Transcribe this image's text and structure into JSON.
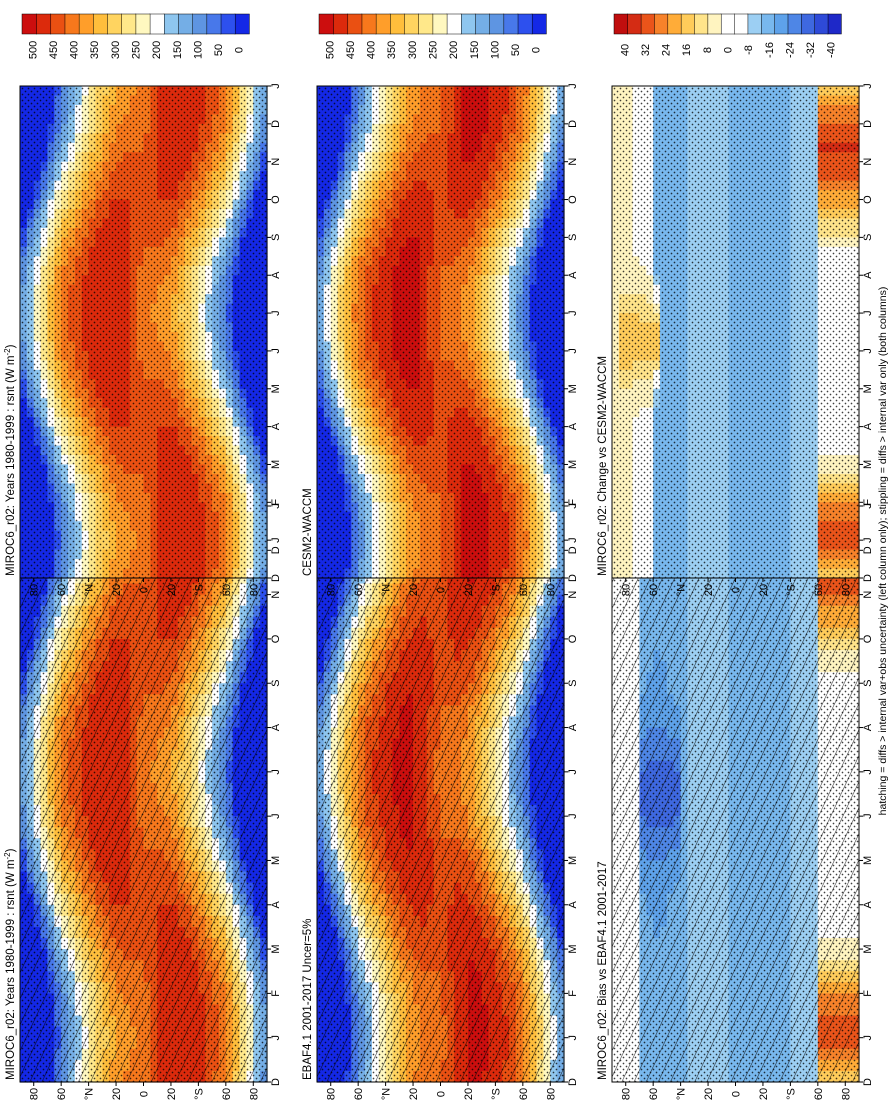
{
  "footer_note": "hatching = diffs > internal var+obs uncertainty (left column only); stippling = diffs > internal var only (both columns)",
  "colors": {
    "abs_scale": [
      "#1428e6",
      "#2d50ee",
      "#4878ea",
      "#5e95e2",
      "#74aee6",
      "#8ec6ef",
      "#ffffff",
      "#fff8c0",
      "#ffe88a",
      "#ffd460",
      "#ffbe3c",
      "#ff9e2a",
      "#f7781c",
      "#ea5012",
      "#dc2a0c",
      "#cc0e0e"
    ],
    "diff_scale": [
      "#1e28c8",
      "#2e4ad8",
      "#3e68e0",
      "#4e86e6",
      "#5ea2ea",
      "#78b8ee",
      "#9ccff3",
      "#ffffff",
      "#ffffff",
      "#fff4c0",
      "#ffe48a",
      "#ffcc5a",
      "#ffac38",
      "#f7822a",
      "#ea541a",
      "#d42c14",
      "#c00e0e"
    ]
  },
  "chart_data": [
    {
      "id": "top-left",
      "type": "heatmap",
      "title": "MIROC6_r02: Years 1980-1999 : rsnt (W m",
      "title_sup": "-2",
      "title_end": ")",
      "months": [
        "D",
        "J",
        "F",
        "M",
        "A",
        "M",
        "J",
        "J",
        "A",
        "S",
        "O",
        "N",
        "D",
        "J"
      ],
      "lat_ticks": [
        "80",
        "60",
        "°N",
        "20",
        "0",
        "20",
        "°S",
        "60",
        "80"
      ],
      "colorbar_labels": [
        "500",
        "450",
        "400",
        "350",
        "300",
        "250",
        "200",
        "150",
        "100",
        "50",
        "0"
      ],
      "scale": "abs",
      "hatching": true,
      "stippling": true,
      "model_offset": 0
    },
    {
      "id": "top-right",
      "type": "heatmap",
      "title": "MIROC6_r02: Years 1980-1999 : rsnt (W m",
      "title_sup": "-2",
      "title_end": ")",
      "months": [
        "D",
        "J",
        "F",
        "M",
        "A",
        "M",
        "J",
        "J",
        "A",
        "S",
        "O",
        "N",
        "D",
        "J"
      ],
      "lat_ticks": [
        "80",
        "60",
        "°N",
        "20",
        "0",
        "20",
        "°S",
        "60",
        "80"
      ],
      "colorbar_labels": [
        "500",
        "450",
        "400",
        "350",
        "300",
        "250",
        "200",
        "150",
        "100",
        "50",
        "0"
      ],
      "scale": "abs",
      "hatching": false,
      "stippling": true,
      "model_offset": 0
    },
    {
      "id": "middle-left",
      "type": "heatmap",
      "title": "EBAF4.1 2001-2017 Uncer=5%",
      "title_sup": "",
      "title_end": "",
      "months": [
        "D",
        "J",
        "F",
        "M",
        "A",
        "M",
        "J",
        "J",
        "A",
        "S",
        "O",
        "N",
        "D",
        "J"
      ],
      "lat_ticks": [
        "80",
        "60",
        "°N",
        "20",
        "0",
        "20",
        "°S",
        "60",
        "80"
      ],
      "colorbar_labels": [
        "500",
        "450",
        "400",
        "350",
        "300",
        "250",
        "200",
        "150",
        "100",
        "50",
        "0"
      ],
      "scale": "abs",
      "hatching": true,
      "stippling": true,
      "model_offset": 8
    },
    {
      "id": "middle-right",
      "type": "heatmap",
      "title": "CESM2-WACCM",
      "title_sup": "",
      "title_end": "",
      "months": [
        "D",
        "J",
        "F",
        "M",
        "A",
        "M",
        "J",
        "J",
        "A",
        "S",
        "O",
        "N",
        "D",
        "J"
      ],
      "lat_ticks": [
        "80",
        "60",
        "°N",
        "20",
        "0",
        "20",
        "°S",
        "60",
        "80"
      ],
      "colorbar_labels": [
        "500",
        "450",
        "400",
        "350",
        "300",
        "250",
        "200",
        "150",
        "100",
        "50",
        "0"
      ],
      "scale": "abs",
      "hatching": false,
      "stippling": true,
      "model_offset": 12
    },
    {
      "id": "bottom-left",
      "type": "heatmap",
      "title": "MIROC6_r02: Bias vs EBAF4.1 2001-2017",
      "title_sup": "",
      "title_end": "",
      "months": [
        "D",
        "J",
        "F",
        "M",
        "A",
        "M",
        "J",
        "J",
        "A",
        "S",
        "O",
        "N",
        "D",
        "J"
      ],
      "lat_ticks": [
        "80",
        "60",
        "°N",
        "20",
        "0",
        "20",
        "°S",
        "60",
        "80"
      ],
      "colorbar_labels": [
        "40",
        "32",
        "24",
        "16",
        "8",
        "0",
        "-8",
        "-16",
        "-24",
        "-32",
        "-40"
      ],
      "scale": "diff",
      "hatching": true,
      "stippling": true,
      "model_offset": 0
    },
    {
      "id": "bottom-right",
      "type": "heatmap",
      "title": "MIROC6_r02: Change vs CESM2-WACCM",
      "title_sup": "",
      "title_end": "",
      "months": [
        "D",
        "J",
        "F",
        "M",
        "A",
        "M",
        "J",
        "J",
        "A",
        "S",
        "O",
        "N",
        "D",
        "J"
      ],
      "lat_ticks": [
        "80",
        "60",
        "°N",
        "20",
        "0",
        "20",
        "°S",
        "60",
        "80"
      ],
      "colorbar_labels": [
        "40",
        "32",
        "24",
        "16",
        "8",
        "0",
        "-8",
        "-16",
        "-24",
        "-32",
        "-40"
      ],
      "scale": "diff",
      "hatching": false,
      "stippling": true,
      "model_offset": 0
    }
  ]
}
